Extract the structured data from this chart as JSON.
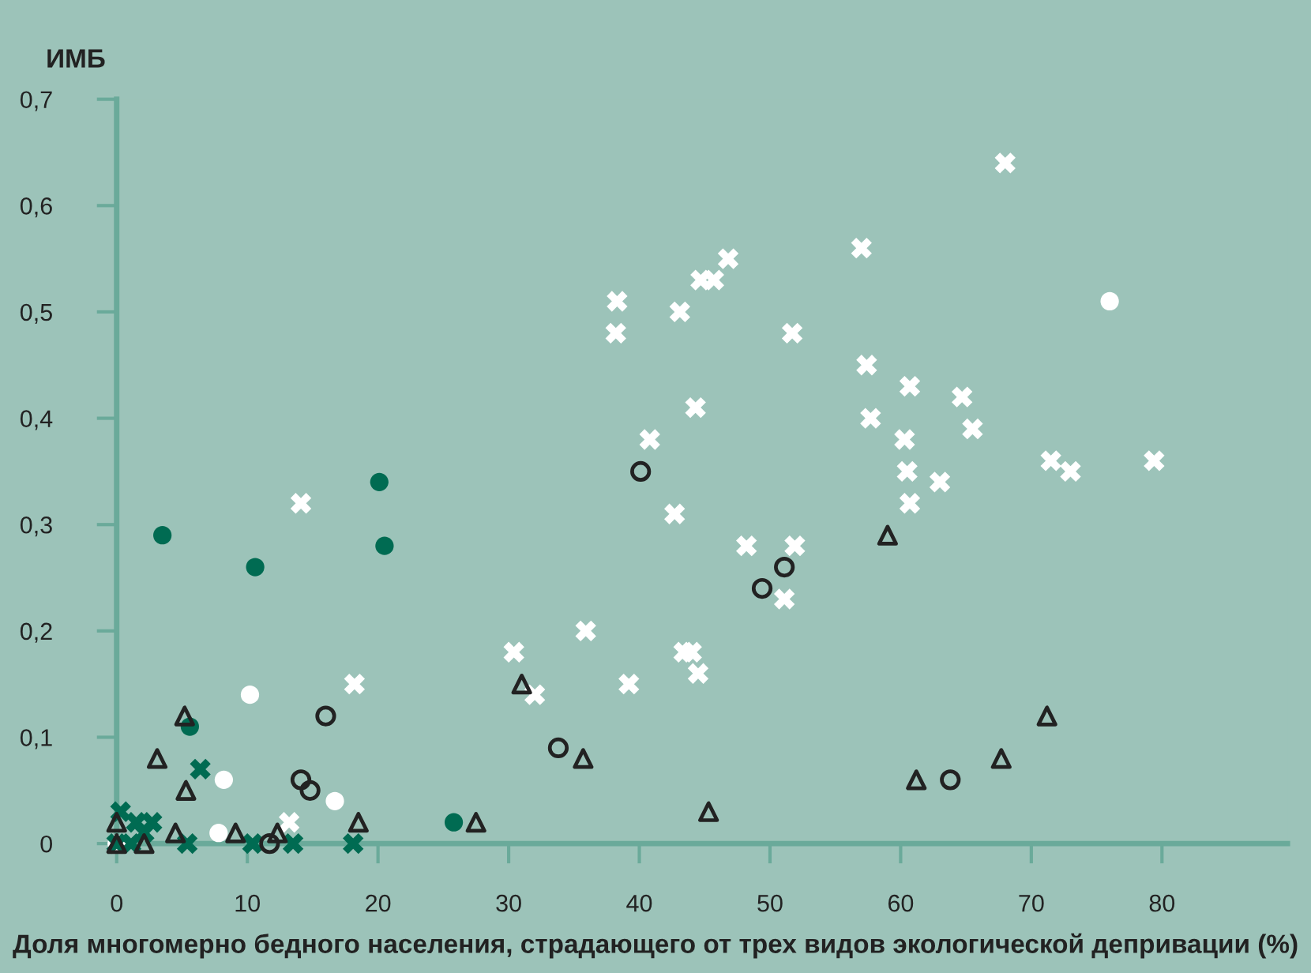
{
  "chart_data": {
    "type": "scatter",
    "xlabel": "Доля многомерно бедного населения, страдающего от трех видов экологической депривации (%)",
    "ylabel": "ИМБ",
    "xlim": [
      0,
      89.6
    ],
    "ylim": [
      0,
      0.7
    ],
    "xticks": [
      0,
      10,
      20,
      30,
      40,
      50,
      60,
      70,
      80
    ],
    "yticks": [
      {
        "value": 0,
        "label": "0"
      },
      {
        "value": 0.1,
        "label": "0,1"
      },
      {
        "value": 0.2,
        "label": "0,2"
      },
      {
        "value": 0.3,
        "label": "0,3"
      },
      {
        "value": 0.4,
        "label": "0,4"
      },
      {
        "value": 0.5,
        "label": "0,5"
      },
      {
        "value": 0.6,
        "label": "0,6"
      },
      {
        "value": 0.7,
        "label": "0,7"
      }
    ],
    "grid": false,
    "series": [
      {
        "color": "#ffffff",
        "marker": "cross",
        "x": [
          14.1,
          18.2,
          13.2,
          30.4,
          32.0,
          35.9,
          39.2,
          38.3,
          38.2,
          40.8,
          42.7,
          43.1,
          44.3,
          44.7,
          45.7,
          46.8,
          43.4,
          44.0,
          44.5,
          48.2,
          51.7,
          51.9,
          51.1,
          57.0,
          57.4,
          57.7,
          60.7,
          60.3,
          60.5,
          60.7,
          63.0,
          64.7,
          65.5,
          68.0,
          71.5,
          73.0,
          79.4
        ],
        "values": [
          0.32,
          0.15,
          0.02,
          0.18,
          0.14,
          0.2,
          0.15,
          0.51,
          0.48,
          0.38,
          0.31,
          0.5,
          0.41,
          0.53,
          0.53,
          0.55,
          0.18,
          0.18,
          0.16,
          0.28,
          0.48,
          0.28,
          0.23,
          0.56,
          0.45,
          0.4,
          0.43,
          0.38,
          0.35,
          0.32,
          0.34,
          0.42,
          0.39,
          0.64,
          0.36,
          0.35,
          0.36
        ]
      },
      {
        "color": "#ffffff",
        "marker": "circle",
        "x": [
          10.2,
          8.2,
          16.7,
          7.8,
          0.0,
          76.0
        ],
        "values": [
          0.14,
          0.06,
          0.04,
          0.01,
          0.0,
          0.51
        ]
      },
      {
        "color": "#006b52",
        "marker": "circle",
        "x": [
          3.5,
          10.6,
          20.1,
          20.5,
          5.6,
          25.8
        ],
        "values": [
          0.29,
          0.26,
          0.34,
          0.28,
          0.11,
          0.02
        ]
      },
      {
        "color": "#006b52",
        "marker": "cross",
        "x": [
          6.4,
          5.4,
          10.4,
          13.5,
          18.1,
          0.3,
          2.7,
          1.5,
          2.1,
          0.5,
          0.0,
          1.1
        ],
        "values": [
          0.07,
          0.0,
          0.0,
          0.0,
          0.0,
          0.03,
          0.02,
          0.02,
          0.01,
          null,
          0.0,
          0.0
        ]
      },
      {
        "color": "#222222",
        "marker": "triangle",
        "x": [
          5.2,
          3.1,
          5.3,
          0.0,
          0.0,
          2.1,
          4.5,
          9.1,
          12.3,
          18.5,
          27.5,
          31.0,
          35.7,
          45.3,
          59.0,
          61.2,
          67.7,
          71.2
        ],
        "values": [
          0.12,
          0.08,
          0.05,
          0.02,
          0.0,
          0.0,
          0.01,
          0.01,
          0.01,
          0.02,
          0.02,
          0.15,
          0.08,
          0.03,
          0.29,
          0.06,
          0.08,
          0.12
        ]
      },
      {
        "color": "#222222",
        "marker": "circle",
        "x": [
          16.0,
          14.1,
          14.8,
          11.7,
          33.8,
          40.1,
          49.4,
          51.1,
          63.8
        ],
        "values": [
          0.12,
          0.06,
          0.05,
          0.0,
          0.09,
          0.35,
          0.24,
          0.26,
          0.06
        ]
      }
    ]
  }
}
